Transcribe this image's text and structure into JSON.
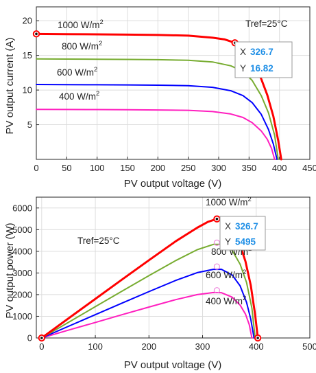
{
  "chart_data": [
    {
      "type": "line",
      "xlabel": "PV output voltage (V)",
      "ylabel": "PV output current (A)",
      "xlim": [
        0,
        450
      ],
      "ylim": [
        0,
        22
      ],
      "xticks": [
        "0",
        "50",
        "100",
        "150",
        "200",
        "250",
        "300",
        "350",
        "400",
        "450"
      ],
      "yticks": [
        "5",
        "10",
        "15",
        "20"
      ],
      "grid": true,
      "annotation": "Tref=25°C",
      "series": [
        {
          "name": "1000 W/m",
          "name_sup": "2",
          "color": "#ff0000",
          "points": [
            [
              0,
              18.1
            ],
            [
              50,
              18.07
            ],
            [
              100,
              18.04
            ],
            [
              150,
              18.0
            ],
            [
              200,
              17.95
            ],
            [
              250,
              17.85
            ],
            [
              290,
              17.55
            ],
            [
              310,
              17.3
            ],
            [
              326.7,
              16.82
            ],
            [
              340,
              15.9
            ],
            [
              355,
              14.3
            ],
            [
              370,
              11.6
            ],
            [
              380,
              9.3
            ],
            [
              390,
              6.2
            ],
            [
              398,
              2.7
            ],
            [
              403,
              0
            ]
          ]
        },
        {
          "name": "800 W/m",
          "name_sup": "2",
          "color": "#77ac30",
          "points": [
            [
              0,
              14.5
            ],
            [
              50,
              14.47
            ],
            [
              100,
              14.45
            ],
            [
              150,
              14.42
            ],
            [
              200,
              14.38
            ],
            [
              250,
              14.3
            ],
            [
              290,
              14.05
            ],
            [
              320,
              13.5
            ],
            [
              340,
              12.7
            ],
            [
              355,
              11.4
            ],
            [
              370,
              9.2
            ],
            [
              382,
              6.7
            ],
            [
              392,
              3.5
            ],
            [
              398,
              0
            ]
          ]
        },
        {
          "name": "600 W/m",
          "name_sup": "2",
          "color": "#0000ff",
          "points": [
            [
              0,
              10.8
            ],
            [
              50,
              10.78
            ],
            [
              100,
              10.76
            ],
            [
              150,
              10.74
            ],
            [
              200,
              10.7
            ],
            [
              250,
              10.63
            ],
            [
              290,
              10.4
            ],
            [
              320,
              9.9
            ],
            [
              340,
              9.2
            ],
            [
              355,
              8.2
            ],
            [
              370,
              6.5
            ],
            [
              382,
              4.3
            ],
            [
              390,
              2.2
            ],
            [
              396,
              0
            ]
          ]
        },
        {
          "name": "400 W/m",
          "name_sup": "2",
          "color": "#ff1fbf",
          "points": [
            [
              0,
              7.2
            ],
            [
              50,
              7.19
            ],
            [
              100,
              7.18
            ],
            [
              150,
              7.16
            ],
            [
              200,
              7.13
            ],
            [
              250,
              7.08
            ],
            [
              290,
              6.9
            ],
            [
              320,
              6.55
            ],
            [
              340,
              6.05
            ],
            [
              355,
              5.3
            ],
            [
              370,
              4.1
            ],
            [
              380,
              2.9
            ],
            [
              387,
              1.6
            ],
            [
              392,
              0
            ]
          ]
        }
      ],
      "marked_points": [
        {
          "x": 0,
          "y": 18.1,
          "color": "#ff0000"
        },
        {
          "x": 326.7,
          "y": 16.82,
          "color": "#ff0000"
        }
      ],
      "datatip": {
        "x_label": "X",
        "x_value": "326.7",
        "y_label": "Y",
        "y_value": "16.82"
      }
    },
    {
      "type": "line",
      "xlabel": "PV output voltage (V)",
      "ylabel": "PV output power (W)",
      "xlim": [
        -10,
        500
      ],
      "ylim": [
        0,
        6500
      ],
      "xticks": [
        "0",
        "100",
        "200",
        "300",
        "400",
        "500"
      ],
      "yticks": [
        "0",
        "1000",
        "2000",
        "3000",
        "4000",
        "5000",
        "6000"
      ],
      "grid": true,
      "annotation": "Tref=25°C",
      "series": [
        {
          "name": "1000 W/m",
          "name_sup": "2",
          "color": "#ff0000",
          "points": [
            [
              0,
              0
            ],
            [
              50,
              904
            ],
            [
              100,
              1804
            ],
            [
              150,
              2700
            ],
            [
              200,
              3590
            ],
            [
              250,
              4463
            ],
            [
              290,
              5090
            ],
            [
              310,
              5363
            ],
            [
              326.7,
              5495
            ],
            [
              340,
              5406
            ],
            [
              355,
              5077
            ],
            [
              370,
              4292
            ],
            [
              380,
              3534
            ],
            [
              390,
              2418
            ],
            [
              398,
              1075
            ],
            [
              403,
              0
            ]
          ]
        },
        {
          "name": "800 W/m",
          "name_sup": "2",
          "color": "#77ac30",
          "points": [
            [
              0,
              0
            ],
            [
              50,
              723
            ],
            [
              100,
              1445
            ],
            [
              150,
              2163
            ],
            [
              200,
              2876
            ],
            [
              250,
              3575
            ],
            [
              290,
              4075
            ],
            [
              320,
              4320
            ],
            [
              340,
              4318
            ],
            [
              355,
              4047
            ],
            [
              370,
              3404
            ],
            [
              382,
              2559
            ],
            [
              392,
              1372
            ],
            [
              398,
              0
            ]
          ]
        },
        {
          "name": "600 W/m",
          "name_sup": "2",
          "color": "#0000ff",
          "points": [
            [
              0,
              0
            ],
            [
              50,
              539
            ],
            [
              100,
              1076
            ],
            [
              150,
              1611
            ],
            [
              200,
              2140
            ],
            [
              250,
              2658
            ],
            [
              290,
              3016
            ],
            [
              320,
              3168
            ],
            [
              335,
              3170
            ],
            [
              355,
              2911
            ],
            [
              370,
              2405
            ],
            [
              382,
              1643
            ],
            [
              390,
              858
            ],
            [
              396,
              0
            ]
          ]
        },
        {
          "name": "400 W/m",
          "name_sup": "2",
          "color": "#ff1fbf",
          "points": [
            [
              0,
              0
            ],
            [
              50,
              360
            ],
            [
              100,
              718
            ],
            [
              150,
              1074
            ],
            [
              200,
              1426
            ],
            [
              250,
              1770
            ],
            [
              290,
              2001
            ],
            [
              320,
              2096
            ],
            [
              335,
              2090
            ],
            [
              355,
              1882
            ],
            [
              370,
              1517
            ],
            [
              380,
              1102
            ],
            [
              387,
              619
            ],
            [
              392,
              0
            ]
          ]
        }
      ],
      "marked_points": [
        {
          "x": 0,
          "y": 0,
          "color": "#ff0000"
        },
        {
          "x": 326.7,
          "y": 5495,
          "color": "#ff0000"
        },
        {
          "x": 403,
          "y": 0,
          "color": "#ff0000"
        },
        {
          "x": 326.7,
          "y": 4395,
          "color": "#ee88dd"
        },
        {
          "x": 326.7,
          "y": 3296,
          "color": "#ee88dd"
        },
        {
          "x": 326.7,
          "y": 2198,
          "color": "#ee88dd"
        }
      ],
      "datatip": {
        "x_label": "X",
        "x_value": "326.7",
        "y_label": "Y",
        "y_value": "5495"
      }
    }
  ]
}
